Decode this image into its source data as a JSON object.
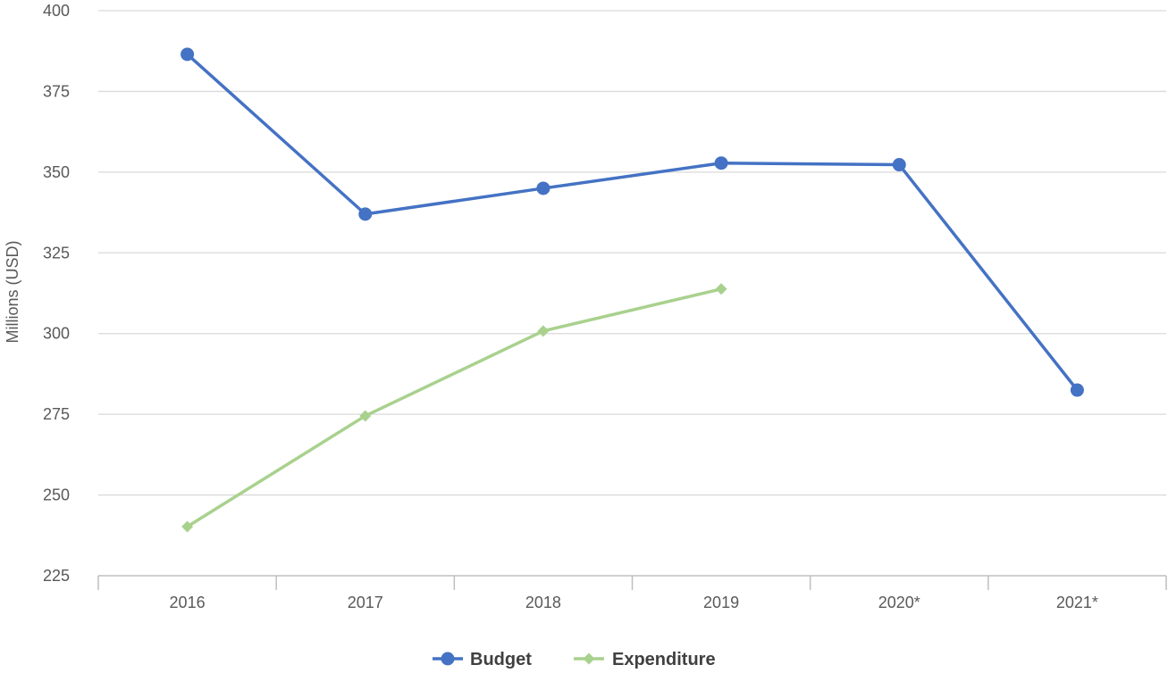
{
  "chart_data": {
    "type": "line",
    "title": "",
    "xlabel": "",
    "ylabel": "Millions (USD)",
    "categories": [
      "2016",
      "2017",
      "2018",
      "2019",
      "2020*",
      "2021*"
    ],
    "ylim": [
      225,
      400
    ],
    "yticks": [
      225,
      250,
      275,
      300,
      325,
      350,
      375,
      400
    ],
    "grid": true,
    "legend_position": "bottom",
    "series": [
      {
        "name": "Budget",
        "marker": "circle",
        "color": "#4472C4",
        "values": [
          386.5,
          337,
          345,
          352.8,
          352.3,
          282.5
        ]
      },
      {
        "name": "Expenditure",
        "marker": "diamond",
        "color": "#A9D18E",
        "values": [
          240.2,
          274.5,
          300.8,
          313.8,
          null,
          null
        ]
      }
    ]
  }
}
